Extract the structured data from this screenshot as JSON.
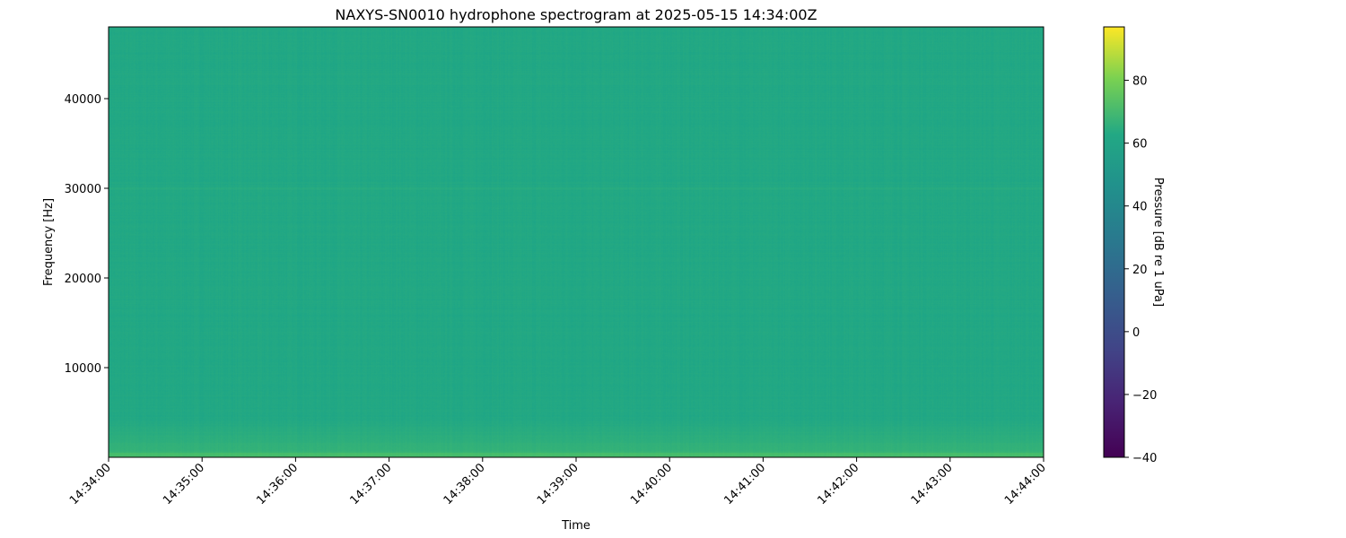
{
  "chart_data": {
    "type": "heatmap",
    "title": "NAXYS-SN0010 hydrophone spectrogram at 2025-05-15 14:34:00Z",
    "xlabel": "Time",
    "ylabel": "Frequency [Hz]",
    "x_ticks": [
      "14:34:00",
      "14:35:00",
      "14:36:00",
      "14:37:00",
      "14:38:00",
      "14:39:00",
      "14:40:00",
      "14:41:00",
      "14:42:00",
      "14:43:00",
      "14:44:00"
    ],
    "xlim": [
      "14:34:00",
      "14:44:00"
    ],
    "y_ticks": [
      10000,
      20000,
      30000,
      40000
    ],
    "ylim": [
      0,
      48000
    ],
    "colorbar": {
      "label": "Pressure [dB re 1 uPa]",
      "colormap": "viridis",
      "range": [
        -40,
        97
      ],
      "ticks": [
        -40,
        -20,
        0,
        20,
        40,
        60,
        80
      ],
      "tick_labels": [
        "−40",
        "−20",
        "0",
        "20",
        "40",
        "60",
        "80"
      ]
    },
    "description_levels": {
      "background_db": 45,
      "low_frequency_band_db": 52
    },
    "colors": {
      "background": "#22a884",
      "low_band": "#35b779"
    }
  }
}
